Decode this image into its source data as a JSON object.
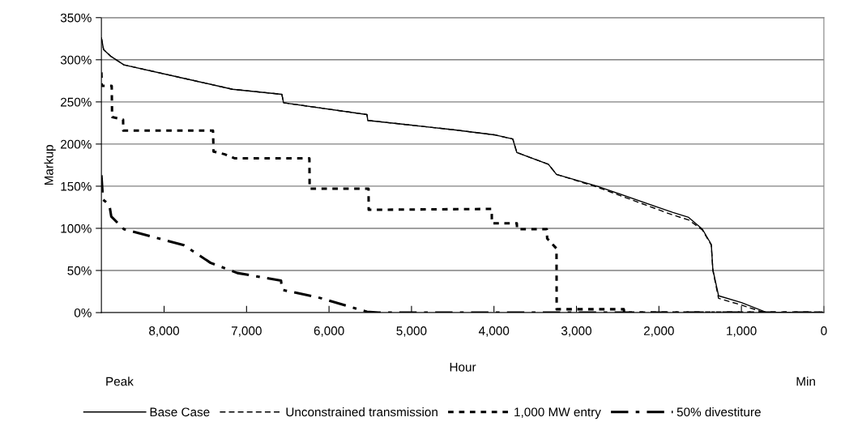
{
  "chart_data": {
    "type": "line",
    "xlabel": "Hour",
    "ylabel": "Markup",
    "annotations": [
      "Peak",
      "Min"
    ],
    "xlim": [
      8760,
      0
    ],
    "xticks": [
      {
        "value": 8000,
        "label": "8,000"
      },
      {
        "value": 7000,
        "label": "7,000"
      },
      {
        "value": 6000,
        "label": "6,000"
      },
      {
        "value": 5000,
        "label": "5,000"
      },
      {
        "value": 4000,
        "label": "4,000"
      },
      {
        "value": 3000,
        "label": "3,000"
      },
      {
        "value": 2000,
        "label": "2,000"
      },
      {
        "value": 1000,
        "label": "1,000"
      },
      0
    ],
    "ylim": [
      0,
      350
    ],
    "yticks": [
      {
        "value": 0,
        "label": "0%"
      },
      {
        "value": 50,
        "label": "50%"
      },
      {
        "value": 100,
        "label": "100%"
      },
      {
        "value": 150,
        "label": "150%"
      },
      {
        "value": 200,
        "label": "200%"
      },
      {
        "value": 250,
        "label": "250%"
      },
      {
        "value": 300,
        "label": "300%"
      },
      {
        "value": 350,
        "label": "350%"
      }
    ],
    "grid": "y",
    "legend": "bottom",
    "marker": "none",
    "series": [
      {
        "name": "Base Case",
        "color": "#000000",
        "line_style": "solid",
        "x": [
          8760,
          8733,
          8644,
          8487,
          7760,
          7171,
          6572,
          6552,
          5540,
          5530,
          4489,
          3998,
          3772,
          3723,
          3340,
          3242,
          2750,
          1837,
          1640,
          1473,
          1365,
          1346,
          1277,
          1000,
          688,
          0
        ],
        "values": [
          326,
          312,
          304,
          294,
          278,
          265,
          259,
          249,
          235,
          228,
          217,
          211,
          206,
          190,
          176,
          164,
          150,
          119,
          113,
          99,
          81,
          51,
          20,
          12,
          0,
          0
        ]
      },
      {
        "name": "Unconstrained transmission",
        "color": "#000000",
        "line_style": "dashed",
        "x": [
          8760,
          8733,
          8644,
          8487,
          7760,
          7171,
          6572,
          6552,
          5540,
          5530,
          4489,
          3998,
          3772,
          3723,
          3340,
          3242,
          2750,
          1837,
          1640,
          1473,
          1365,
          1346,
          1277,
          1000,
          720,
          0
        ],
        "values": [
          326,
          312,
          304,
          294,
          278,
          265,
          259,
          249,
          235,
          228,
          217,
          211,
          206,
          190,
          176,
          164,
          149,
          116,
          110,
          98,
          80,
          50,
          17,
          9,
          0,
          0
        ]
      },
      {
        "name": "1,000 MW entry",
        "color": "#000000",
        "line_style": "dotted",
        "x": [
          8760,
          8755,
          8635,
          8630,
          8497,
          8495,
          7407,
          7400,
          7269,
          7141,
          6238,
          6235,
          5521,
          5519,
          4028,
          4025,
          3723,
          3720,
          3360,
          3355,
          3242,
          3240,
          2426,
          2420,
          0
        ],
        "values": [
          285,
          269,
          269,
          232,
          229,
          216,
          216,
          191,
          188,
          183,
          183,
          147,
          147,
          122,
          123,
          106,
          106,
          99,
          99,
          88,
          76,
          4,
          4,
          0,
          0
        ]
      },
      {
        "name": "50% divestiture",
        "color": "#000000",
        "line_style": "dashdot",
        "x": [
          8760,
          8740,
          8664,
          8640,
          8487,
          7760,
          7436,
          7112,
          6582,
          6570,
          6130,
          5540,
          5400,
          0
        ],
        "values": [
          163,
          134,
          128,
          114,
          99,
          80,
          59,
          47,
          38,
          27,
          18,
          1,
          0,
          0
        ]
      }
    ]
  }
}
